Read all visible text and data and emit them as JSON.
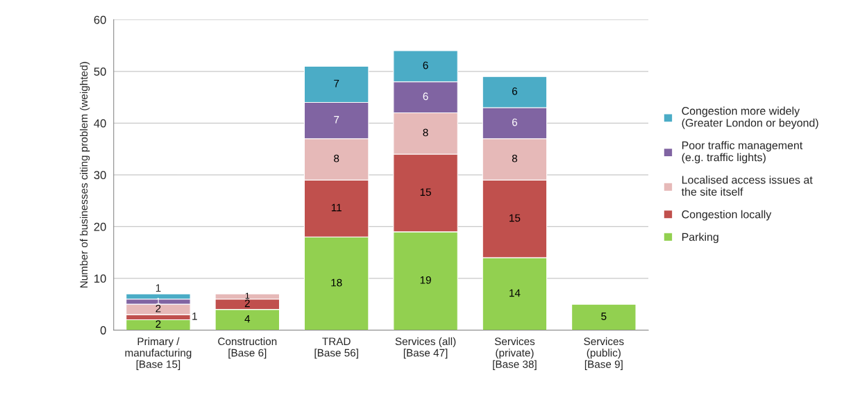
{
  "chart_data": {
    "type": "bar",
    "stacked": true,
    "ylabel": "Number of businesses citing problem (weighted)",
    "categories": [
      "Primary /\nmanufacturing\n[Base 15]",
      "Construction\n[Base 6]",
      "TRAD\n[Base 56]",
      "Services (all)\n[Base 47]",
      "Services\n(private)\n[Base 38]",
      "Services\n(public)\n[Base 9]"
    ],
    "series": [
      {
        "name": "Parking",
        "color": "#92d050",
        "values": [
          2,
          4,
          18,
          19,
          14,
          5
        ]
      },
      {
        "name": "Congestion locally",
        "color": "#c0504d",
        "values": [
          1,
          2,
          11,
          15,
          15,
          null
        ]
      },
      {
        "name": "Localised access issues at the site itself",
        "color": "#e6b9b8",
        "values": [
          2,
          1,
          8,
          8,
          8,
          null
        ]
      },
      {
        "name": "Poor traffic management (e.g. traffic lights)",
        "color": "#8064a2",
        "values": [
          1,
          null,
          7,
          6,
          6,
          null
        ]
      },
      {
        "name": "Congestion more widely (Greater London or beyond)",
        "color": "#4bacc6",
        "values": [
          1,
          null,
          7,
          6,
          6,
          null
        ]
      }
    ],
    "ylim": [
      0,
      60
    ],
    "yticks": [
      0,
      10,
      20,
      30,
      40,
      50,
      60
    ],
    "grid": "y",
    "legend": "right",
    "data_labels": true
  }
}
